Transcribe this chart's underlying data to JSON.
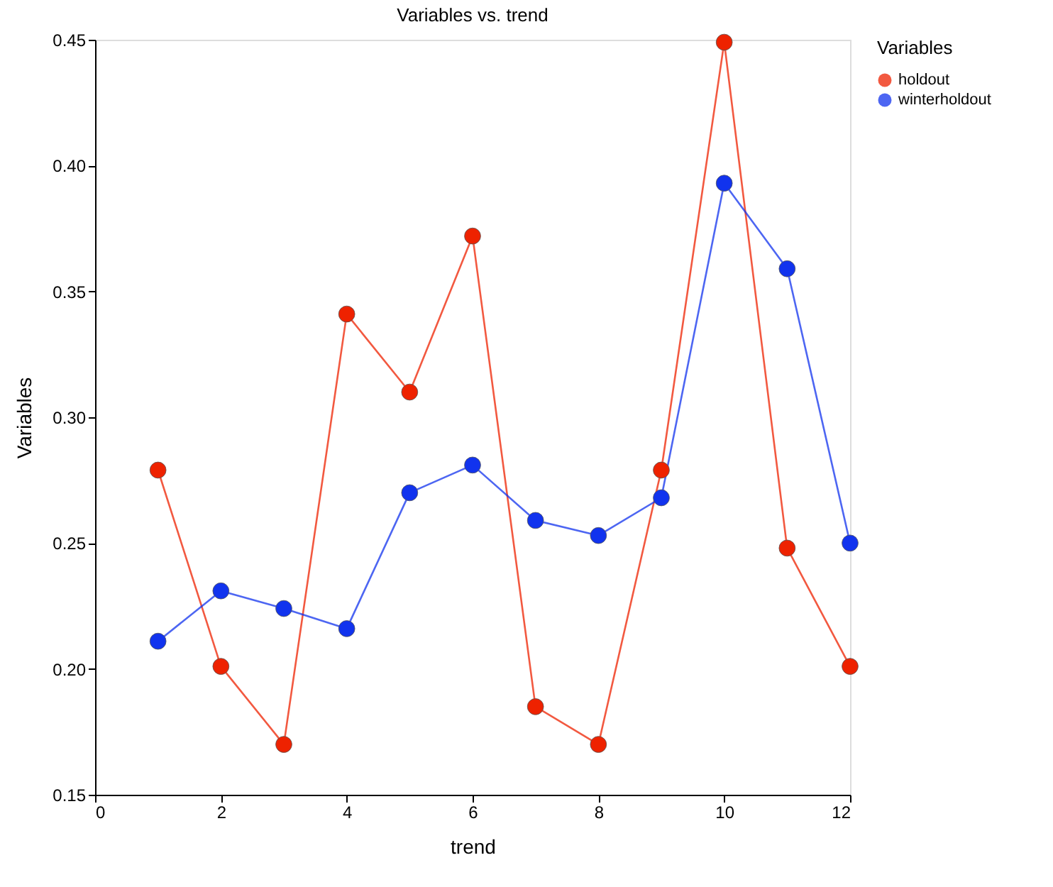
{
  "chart_data": {
    "type": "line",
    "title": "Variables vs. trend",
    "xlabel": "trend",
    "ylabel": "Variables",
    "legend_title": "Variables",
    "x": [
      1,
      2,
      3,
      4,
      5,
      6,
      7,
      8,
      9,
      10,
      11,
      12
    ],
    "series": [
      {
        "name": "holdout",
        "color": "#ee2200",
        "values": [
          0.279,
          0.201,
          0.17,
          0.341,
          0.31,
          0.372,
          0.185,
          0.17,
          0.279,
          0.449,
          0.248,
          0.201
        ]
      },
      {
        "name": "winterholdout",
        "color": "#1133ee",
        "values": [
          0.211,
          0.231,
          0.224,
          0.216,
          0.27,
          0.281,
          0.259,
          0.253,
          0.268,
          0.393,
          0.359,
          0.25
        ]
      }
    ],
    "xlim": [
      0,
      12
    ],
    "xticks": [
      0,
      2,
      4,
      6,
      8,
      10,
      12
    ],
    "ylim": [
      0.15,
      0.45
    ],
    "yticks": [
      0.15,
      {
        "value": 0.2,
        "label": "0.20"
      },
      0.25,
      {
        "value": 0.3,
        "label": "0.30"
      },
      0.35,
      {
        "value": 0.4,
        "label": "0.40"
      },
      0.45
    ],
    "grid": false,
    "legend": "right",
    "marker": "circle",
    "line_style": "solid"
  }
}
